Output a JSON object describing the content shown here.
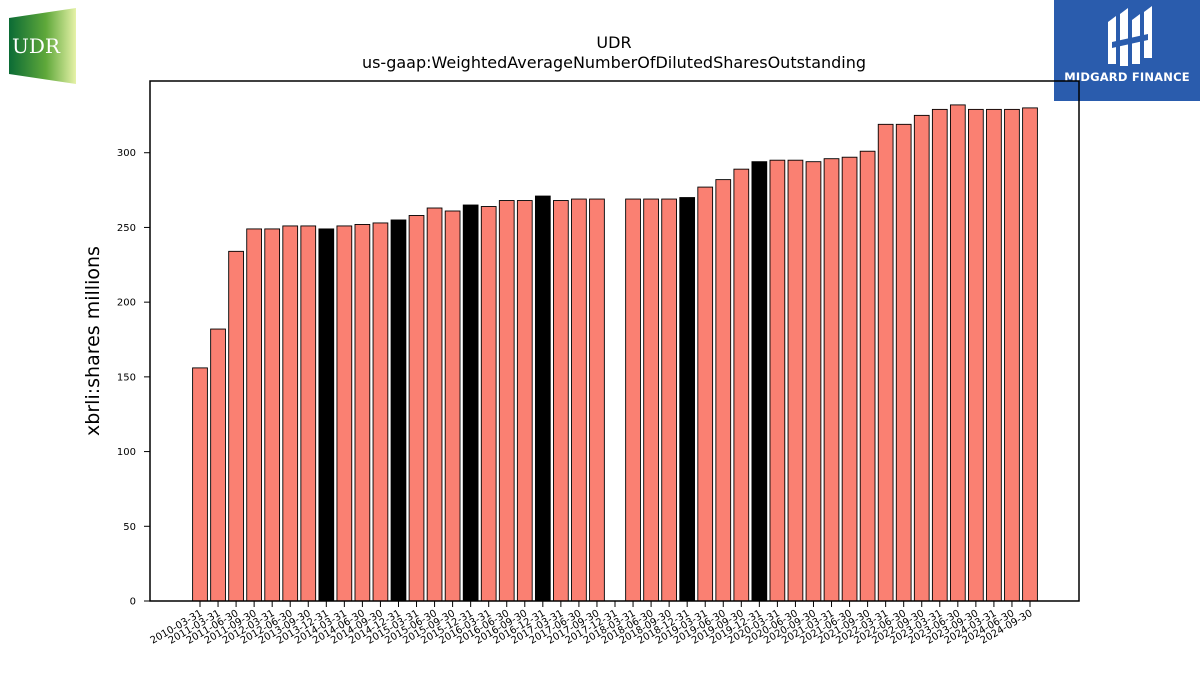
{
  "logos": {
    "company_text": "UDR",
    "company_colors": [
      "#0b6b35",
      "#7cb342",
      "#e0ef9a"
    ],
    "brand_text": "MIDGARD FINANCE",
    "brand_color": "#2a5cad"
  },
  "chart_data": {
    "type": "bar",
    "title": "UDR",
    "subtitle": "us-gaap:WeightedAverageNumberOfDilutedSharesOutstanding",
    "xlabel": "",
    "ylabel": "xbrli:shares millions",
    "ylim": [
      0,
      348
    ],
    "yticks": [
      0,
      50,
      100,
      150,
      200,
      250,
      300
    ],
    "grid": false,
    "legend": "none",
    "bar_color": "#fa8072",
    "highlight_color": "#000000",
    "categories": [
      "2010-03-31",
      "2011-03-31",
      "2011-06-30",
      "2011-09-30",
      "2012-03-31",
      "2012-06-30",
      "2013-09-30",
      "2013-12-31",
      "2014-03-31",
      "2014-06-30",
      "2014-09-30",
      "2014-12-31",
      "2015-03-31",
      "2015-06-30",
      "2015-09-30",
      "2015-12-31",
      "2016-03-31",
      "2016-06-30",
      "2016-09-30",
      "2016-12-31",
      "2017-03-31",
      "2017-06-30",
      "2017-09-30",
      "2017-12-31",
      "2018-03-31",
      "2018-06-30",
      "2018-09-30",
      "2018-12-31",
      "2019-03-31",
      "2019-06-30",
      "2019-09-30",
      "2019-12-31",
      "2020-03-31",
      "2020-06-30",
      "2020-09-30",
      "2021-03-31",
      "2021-06-30",
      "2021-09-30",
      "2022-03-31",
      "2022-06-30",
      "2022-09-30",
      "2023-03-31",
      "2023-06-30",
      "2023-09-30",
      "2024-03-31",
      "2024-06-30",
      "2024-09-30"
    ],
    "values": [
      156,
      182,
      234,
      249,
      249,
      251,
      251,
      249,
      251,
      252,
      253,
      255,
      258,
      263,
      261,
      265,
      264,
      268,
      268,
      271,
      268,
      269,
      269,
      0,
      269,
      269,
      269,
      270,
      277,
      282,
      289,
      294,
      295,
      295,
      294,
      296,
      297,
      301,
      319,
      319,
      325,
      329,
      332,
      329,
      329,
      329,
      330
    ],
    "highlight": [
      false,
      false,
      false,
      false,
      false,
      false,
      false,
      true,
      false,
      false,
      false,
      true,
      false,
      false,
      false,
      true,
      false,
      false,
      false,
      true,
      false,
      false,
      false,
      false,
      false,
      false,
      false,
      true,
      false,
      false,
      false,
      true,
      false,
      false,
      false,
      false,
      false,
      false,
      false,
      false,
      false,
      false,
      false,
      false,
      false,
      false,
      false
    ]
  }
}
